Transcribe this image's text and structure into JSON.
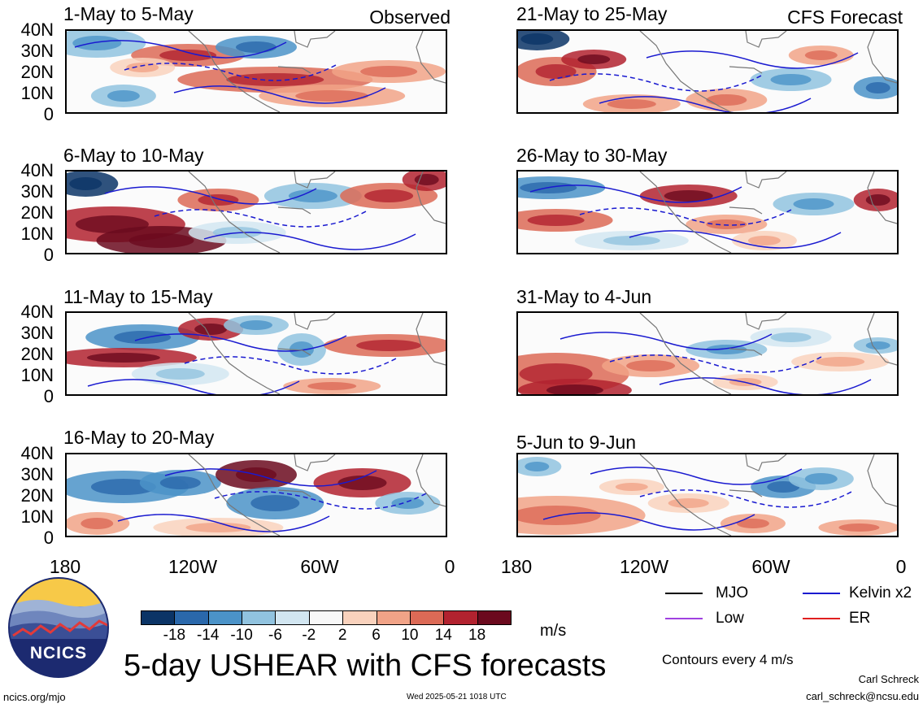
{
  "title": "5-day USHEAR with CFS forecasts",
  "panels_left": [
    {
      "label": "1-May to 5-May",
      "tag": "Observed"
    },
    {
      "label": "6-May to 10-May",
      "tag": ""
    },
    {
      "label": "11-May to 15-May",
      "tag": ""
    },
    {
      "label": "16-May to 20-May",
      "tag": ""
    }
  ],
  "panels_right": [
    {
      "label": "21-May to 25-May",
      "tag": "CFS Forecast"
    },
    {
      "label": "26-May to 30-May",
      "tag": ""
    },
    {
      "label": "31-May to 4-Jun",
      "tag": ""
    },
    {
      "label": "5-Jun to 9-Jun",
      "tag": ""
    }
  ],
  "lat_labels": [
    "40N",
    "30N",
    "20N",
    "10N",
    "0"
  ],
  "lon_labels": [
    "180",
    "120W",
    "60W",
    "0"
  ],
  "colorbar": {
    "unit": "m/s",
    "labels": [
      "-18",
      "-14",
      "-10",
      "-6",
      "-2",
      "2",
      "6",
      "10",
      "14",
      "18"
    ],
    "colors": [
      "#0b3466",
      "#2a68ab",
      "#4b93c8",
      "#91c3df",
      "#d2e6f1",
      "#f8f8f8",
      "#f9d2bd",
      "#f1a387",
      "#dc6a56",
      "#b2222f",
      "#6b0a1e"
    ]
  },
  "legend": {
    "items": [
      {
        "label": "MJO",
        "color": "#000000"
      },
      {
        "label": "Kelvin x2",
        "color": "#1a1ad0"
      },
      {
        "label": "Low",
        "color": "#a040e0"
      },
      {
        "label": "ER",
        "color": "#e02020"
      }
    ],
    "contours_note": "Contours every 4 m/s"
  },
  "logo_text": "NCICS",
  "footer": {
    "left": "ncics.org/mjo",
    "center": "Wed 2025-05-21 1018 UTC",
    "author": "Carl Schreck",
    "email": "carl_schreck@ncsu.edu"
  }
}
